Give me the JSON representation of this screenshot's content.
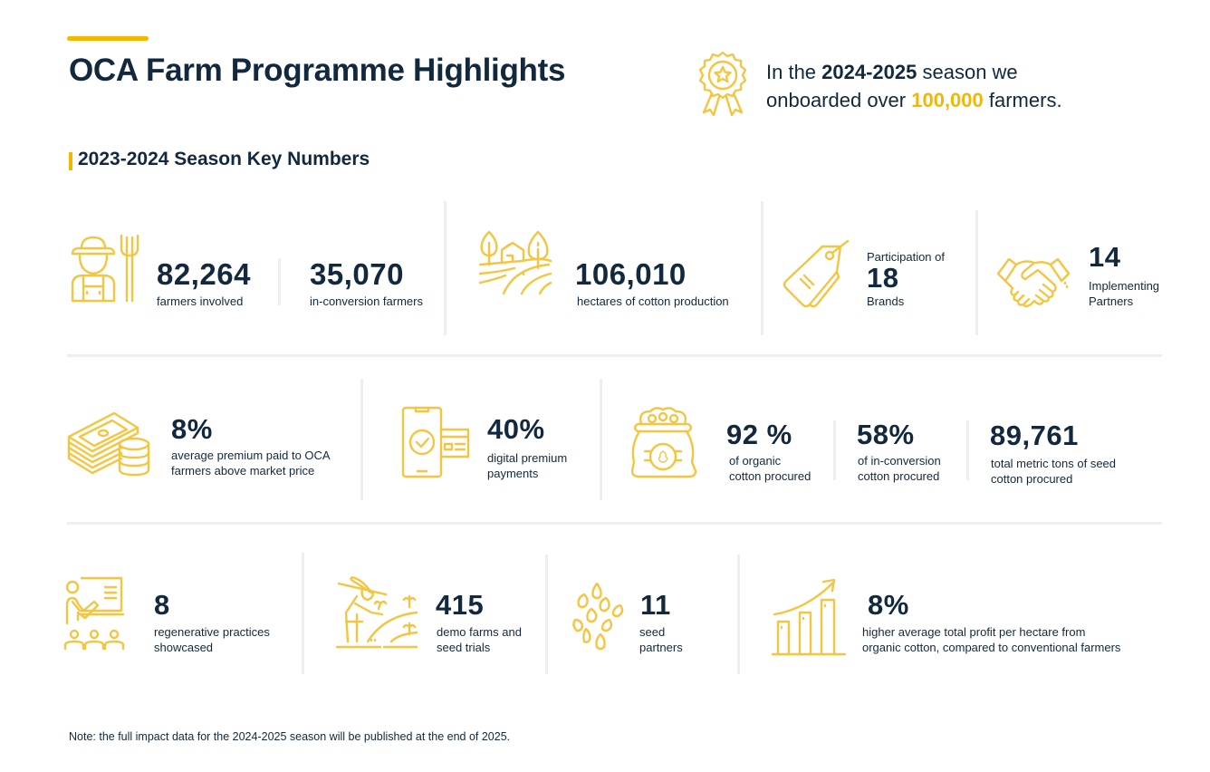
{
  "header": {
    "title": "OCA Farm Programme Highlights",
    "highlight": {
      "prefix": "In the ",
      "season": "2024-2025",
      "middle": " season we",
      "line2_prefix": "onboarded over ",
      "count": "100,000",
      "suffix": " farmers."
    }
  },
  "section_title": "2023-2024 Season Key Numbers",
  "colors": {
    "accent": "#f4b700",
    "icon": "#f5c542",
    "text": "#12283f",
    "divider": "#eeeeee"
  },
  "row1": [
    {
      "icon": "farmer-icon",
      "value": "82,264",
      "label": "farmers involved"
    },
    {
      "value": "35,070",
      "label": "in-conversion farmers"
    },
    {
      "icon": "farm-landscape-icon",
      "value": "106,010",
      "label": "hectares of cotton production"
    },
    {
      "icon": "price-tag-icon",
      "pre_label": "Participation of",
      "value": "18",
      "label": "Brands"
    },
    {
      "icon": "handshake-icon",
      "value": "14",
      "label_line1": "Implementing",
      "label_line2": "Partners"
    }
  ],
  "row2": [
    {
      "icon": "money-stack-icon",
      "value": "8%",
      "label_line1": "average premium paid to OCA",
      "label_line2": "farmers above market price"
    },
    {
      "icon": "mobile-payment-icon",
      "value": "40%",
      "label_line1": "digital premium",
      "label_line2": "payments"
    },
    {
      "icon": "cotton-sack-icon",
      "value": "92 %",
      "label_line1": "of  organic",
      "label_line2": "cotton procured"
    },
    {
      "value": "58%",
      "label_line1": "of in-conversion",
      "label_line2": "cotton procured"
    },
    {
      "value": "89,761",
      "label_line1": "total metric tons of seed",
      "label_line2": "cotton procured"
    }
  ],
  "row3": [
    {
      "icon": "training-presentation-icon",
      "value": "8",
      "label_line1": "regenerative practices",
      "label_line2": "showcased"
    },
    {
      "icon": "farmer-planting-icon",
      "value": "415",
      "label_line1": "demo farms and",
      "label_line2": "seed trials"
    },
    {
      "icon": "seeds-icon",
      "value": "11",
      "label_line1": "seed",
      "label_line2": "partners"
    },
    {
      "icon": "growth-chart-icon",
      "value": "8%",
      "label_line1": "higher average total profit per hectare from",
      "label_line2": "organic cotton, compared to conventional farmers"
    }
  ],
  "footer_note": "Note: the full impact data for the 2024-2025 season will be published at the end of 2025."
}
